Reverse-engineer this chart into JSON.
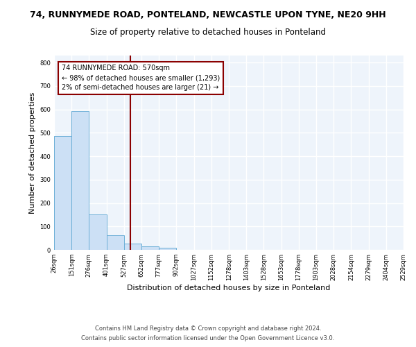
{
  "title1": "74, RUNNYMEDE ROAD, PONTELAND, NEWCASTLE UPON TYNE, NE20 9HH",
  "title2": "Size of property relative to detached houses in Ponteland",
  "xlabel": "Distribution of detached houses by size in Ponteland",
  "ylabel": "Number of detached properties",
  "bar_edges": [
    26,
    151,
    276,
    401,
    527,
    652,
    777,
    902,
    1027,
    1152,
    1278,
    1403,
    1528,
    1653,
    1778,
    1903,
    2028,
    2154,
    2279,
    2404,
    2529
  ],
  "bar_heights": [
    487,
    592,
    150,
    63,
    28,
    14,
    8,
    0,
    0,
    0,
    0,
    0,
    0,
    0,
    0,
    0,
    0,
    0,
    0,
    0
  ],
  "bar_color": "#cce0f5",
  "bar_edge_color": "#6baed6",
  "vline_x": 570,
  "vline_color": "#8b0000",
  "annotation_text": "74 RUNNYMEDE ROAD: 570sqm\n← 98% of detached houses are smaller (1,293)\n2% of semi-detached houses are larger (21) →",
  "annotation_box_color": "white",
  "annotation_box_edge": "#8b0000",
  "ylim": [
    0,
    830
  ],
  "yticks": [
    0,
    100,
    200,
    300,
    400,
    500,
    600,
    700,
    800
  ],
  "footer1": "Contains HM Land Registry data © Crown copyright and database right 2024.",
  "footer2": "Contains public sector information licensed under the Open Government Licence v3.0.",
  "bg_color": "#eef4fb",
  "fig_bg": "#ffffff",
  "grid_color": "#ffffff",
  "title1_fontsize": 9,
  "title2_fontsize": 8.5,
  "ylabel_fontsize": 8,
  "xlabel_fontsize": 8,
  "tick_fontsize": 6,
  "footer_fontsize": 6,
  "annot_fontsize": 7
}
